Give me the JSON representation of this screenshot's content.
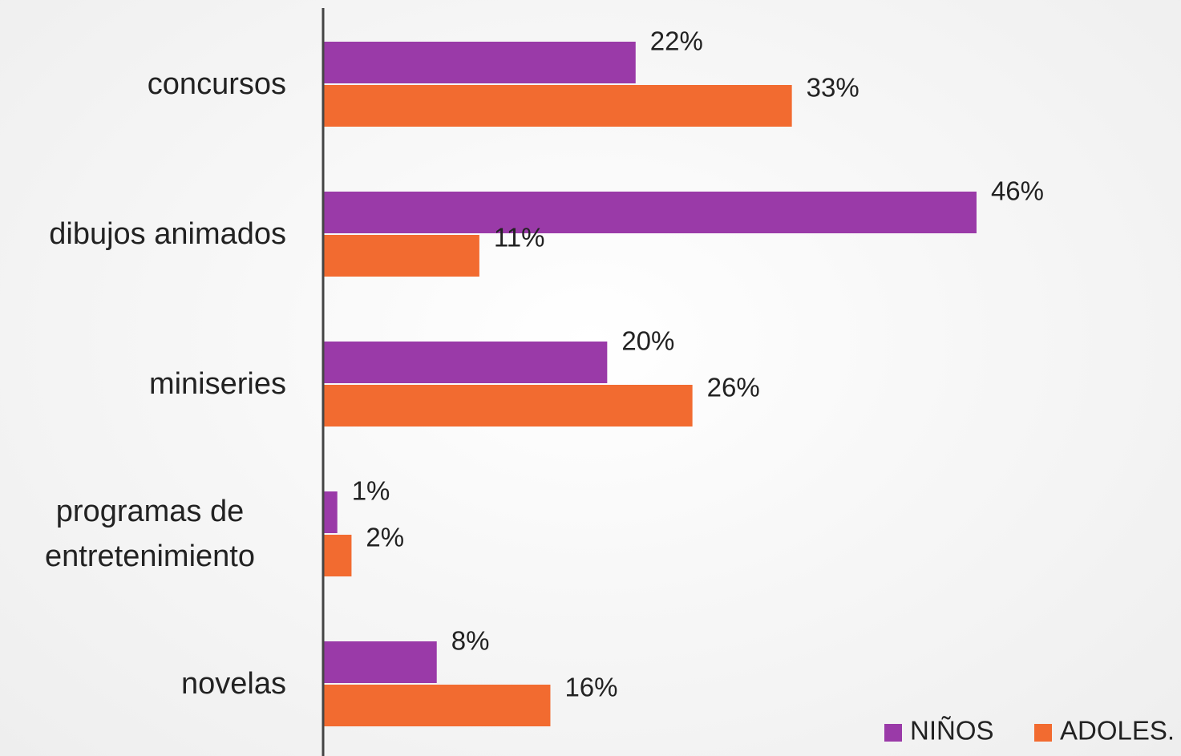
{
  "chart_data": {
    "type": "bar",
    "orientation": "horizontal",
    "categories": [
      "concursos",
      "dibujos animados",
      "miniseries",
      "programas de entretenimiento",
      "novelas"
    ],
    "series": [
      {
        "name": "NIÑOS",
        "color": "#9a3aa8",
        "values": [
          22,
          46,
          20,
          1,
          8
        ],
        "value_labels": [
          "22%",
          "46%",
          "20%",
          "1%",
          "8%"
        ]
      },
      {
        "name": "ADOLES.",
        "color": "#f26b30",
        "values": [
          33,
          11,
          26,
          2,
          16
        ],
        "value_labels": [
          "33%",
          "11%",
          "26%",
          "2%",
          "16%"
        ]
      }
    ],
    "xlim": [
      0,
      60
    ],
    "legend": "bottom-right"
  }
}
